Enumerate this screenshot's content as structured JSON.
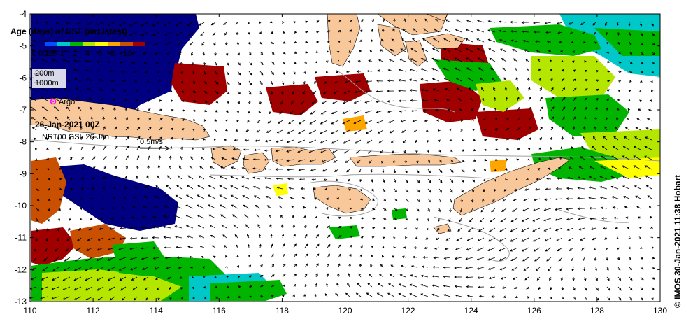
{
  "legend": {
    "title": "Age (days) of SST (wrt latest)",
    "ticks": [
      "0",
      "0.25",
      "0.5",
      "1",
      "2",
      "4",
      "6",
      "8",
      "10"
    ],
    "colors": [
      "#000080",
      "#0050ff",
      "#00c8c8",
      "#00b400",
      "#b4e600",
      "#ffff00",
      "#ffa500",
      "#c85000",
      "#a00000"
    ]
  },
  "contours": [
    "200m",
    "1000m"
  ],
  "argo_label": "Argo",
  "date_label": "26-Jan-2021 00Z",
  "product_label": "NRT00 GSL 26-Jan",
  "scale_label": "0.5m/s",
  "credit": "© IMOS 30-Jan-2021 11:38 Hobart",
  "axes": {
    "y_ticks": [
      "-4",
      "-5",
      "-6",
      "-7",
      "-8",
      "-9",
      "-10",
      "-11",
      "-12",
      "-13"
    ],
    "x_ticks": [
      "110",
      "112",
      "114",
      "116",
      "118",
      "120",
      "122",
      "124",
      "126",
      "128",
      "130"
    ]
  },
  "colors": {
    "land": "#f8c79a",
    "isobath": "#a0a0a0",
    "frame": "#000000"
  }
}
